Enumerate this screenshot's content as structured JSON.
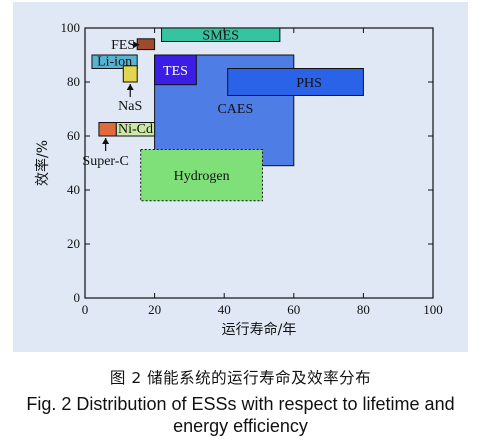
{
  "figure": {
    "caption_cn": "图 2  储能系统的运行寿命及效率分布",
    "caption_en_line1": "Fig. 2    Distribution of ESSs with respect to lifetime and",
    "caption_en_line2": "energy efficiency"
  },
  "chart_data": {
    "type": "range-box",
    "xlabel": "运行寿命/年",
    "ylabel": "效率/%",
    "xlim": [
      0,
      100
    ],
    "ylim": [
      0,
      100
    ],
    "xticks": [
      "0",
      "20",
      "40",
      "60",
      "80",
      "100"
    ],
    "yticks": [
      "0",
      "20",
      "40",
      "60",
      "80",
      "100"
    ],
    "grid": false,
    "regions": [
      {
        "name": "CAES",
        "x": [
          20,
          60
        ],
        "y": [
          49,
          90
        ],
        "color": "#4f7de6",
        "text_color": "#111111"
      },
      {
        "name": "FES",
        "x": [
          15,
          20
        ],
        "y": [
          92,
          96
        ],
        "color": "#9e4a2d",
        "text_color": "#111111"
      },
      {
        "name": "SMES",
        "x": [
          22,
          56
        ],
        "y": [
          95,
          100
        ],
        "color": "#36c4a0",
        "text_color": "#111111"
      },
      {
        "name": "Li-ion",
        "x": [
          2,
          15
        ],
        "y": [
          85,
          90
        ],
        "color": "#56b3d2",
        "text_color": "#111111"
      },
      {
        "name": "NaS",
        "x": [
          11,
          15
        ],
        "y": [
          80,
          86
        ],
        "color": "#e3d64f",
        "text_color": "#111111"
      },
      {
        "name": "TES",
        "x": [
          20,
          32
        ],
        "y": [
          79,
          90
        ],
        "color": "#3a1de6",
        "text_color": "#ffffff"
      },
      {
        "name": "PHS",
        "x": [
          41,
          80
        ],
        "y": [
          75,
          85
        ],
        "color": "#2a62e8",
        "text_color": "#111111"
      },
      {
        "name": "Super-C",
        "x": [
          4,
          9
        ],
        "y": [
          60,
          65
        ],
        "color": "#e06a3c",
        "text_color": "#111111"
      },
      {
        "name": "Ni-Cd",
        "x": [
          9,
          20
        ],
        "y": [
          60,
          65
        ],
        "color": "#cbe8a6",
        "text_color": "#111111"
      },
      {
        "name": "Hydrogen",
        "x": [
          16,
          51
        ],
        "y": [
          36,
          55
        ],
        "color": "#7fe07a",
        "text_color": "#111111",
        "dashed": true
      }
    ]
  }
}
